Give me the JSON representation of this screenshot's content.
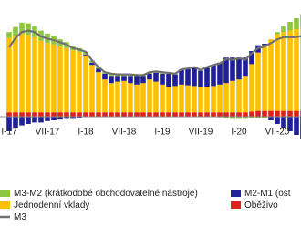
{
  "chart_data": {
    "type": "bar",
    "categories": [
      "I-17",
      null,
      null,
      null,
      null,
      null,
      "VII-17",
      null,
      null,
      null,
      null,
      null,
      "I-18",
      null,
      null,
      null,
      null,
      null,
      "VII-18",
      null,
      null,
      null,
      null,
      null,
      "I-19",
      null,
      null,
      null,
      null,
      null,
      "VII-19",
      null,
      null,
      null,
      null,
      null,
      "I-20",
      null,
      null,
      null,
      null,
      null,
      "VII-20",
      null,
      null,
      null,
      null
    ],
    "ylim": [
      -4,
      16
    ],
    "series": [
      {
        "name": "M3-M2 (krátkodobé obchodovatelné nástroje)",
        "color": "#8dc63f",
        "values": [
          0.8,
          1.2,
          1.5,
          1.6,
          1.5,
          1.4,
          1.3,
          1.2,
          1.0,
          0.8,
          0.6,
          0.5,
          0.4,
          0.3,
          0.2,
          0.2,
          0.3,
          0.2,
          0.2,
          0.2,
          0.1,
          0.1,
          0.2,
          0.2,
          0.2,
          0.1,
          0.1,
          0.1,
          0.1,
          0.1,
          0.1,
          0.1,
          0.1,
          -0.1,
          -0.2,
          -0.3,
          -0.3,
          -0.3,
          -0.2,
          -0.2,
          -0.2,
          0,
          0.3,
          0.8,
          1.2,
          1.5,
          1.8
        ]
      },
      {
        "name": "M2-M1 (ost",
        "color": "#1f1f9a",
        "values": [
          -2.0,
          -1.5,
          -1.2,
          -1.0,
          -0.8,
          -0.8,
          -0.6,
          -0.5,
          -0.4,
          -0.3,
          -0.3,
          -0.2,
          0.1,
          0.3,
          0.5,
          0.8,
          1.0,
          0.8,
          0.7,
          1.0,
          1.2,
          1.0,
          0.8,
          1.2,
          1.5,
          1.8,
          1.6,
          2.0,
          2.2,
          2.5,
          2.3,
          2.6,
          2.8,
          3.0,
          3.5,
          3.2,
          3.0,
          2.5,
          1.8,
          1.0,
          0.2,
          -0.5,
          -1.0,
          -1.5,
          -2.0,
          -2.5,
          -3.0
        ]
      },
      {
        "name": "Jednodenní vklady",
        "color": "#ffc000",
        "values": [
          10.2,
          10.5,
          10.8,
          10.6,
          10.3,
          9.8,
          9.5,
          9.3,
          9.0,
          8.8,
          8.5,
          8.3,
          7.8,
          6.5,
          5.5,
          4.5,
          4.0,
          4.2,
          4.3,
          4.0,
          3.8,
          4.0,
          4.5,
          4.2,
          3.8,
          3.5,
          3.6,
          3.8,
          3.7,
          3.6,
          3.4,
          3.5,
          3.6,
          3.8,
          4.0,
          4.3,
          4.5,
          5.0,
          6.5,
          8.0,
          9.0,
          9.8,
          10.5,
          10.8,
          11.0,
          11.2,
          11.5
        ]
      },
      {
        "name": "Oběživo",
        "color": "#e0201c",
        "values": [
          0.6,
          0.6,
          0.6,
          0.6,
          0.6,
          0.6,
          0.6,
          0.6,
          0.6,
          0.6,
          0.6,
          0.6,
          0.6,
          0.6,
          0.6,
          0.6,
          0.6,
          0.6,
          0.6,
          0.6,
          0.6,
          0.6,
          0.6,
          0.6,
          0.6,
          0.6,
          0.6,
          0.6,
          0.6,
          0.6,
          0.6,
          0.6,
          0.6,
          0.6,
          0.6,
          0.6,
          0.6,
          0.6,
          0.7,
          0.8,
          0.8,
          0.8,
          0.8,
          0.8,
          0.8,
          0.8,
          0.8
        ]
      },
      {
        "name": "M3",
        "type": "line",
        "color": "#707070",
        "values": [
          9.5,
          10.8,
          11.6,
          11.8,
          11.6,
          11.0,
          10.7,
          10.5,
          10.2,
          9.9,
          9.4,
          9.2,
          8.9,
          7.7,
          6.8,
          6.1,
          5.9,
          5.8,
          5.8,
          5.8,
          5.7,
          5.7,
          6.1,
          6.2,
          6.1,
          6.0,
          5.9,
          6.5,
          6.6,
          6.8,
          6.4,
          6.8,
          7.1,
          7.3,
          7.9,
          7.8,
          8.0,
          7.8,
          8.7,
          9.4,
          9.6,
          10.1,
          10.6,
          10.9,
          10.9,
          10.9,
          11.1
        ]
      }
    ]
  }
}
